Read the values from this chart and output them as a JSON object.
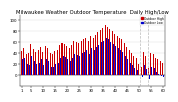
{
  "title": "Milwaukee Weather Outdoor Temperature  Daily High/Low",
  "title_fontsize": 3.8,
  "high_color": "#cc0000",
  "low_color": "#0000cc",
  "background_color": "#ffffff",
  "ylim": [
    -20,
    110
  ],
  "yticks": [
    0,
    20,
    40,
    60,
    80,
    100
  ],
  "highs": [
    44,
    49,
    38,
    40,
    56,
    47,
    41,
    46,
    50,
    42,
    52,
    48,
    39,
    38,
    44,
    46,
    55,
    58,
    56,
    52,
    48,
    55,
    61,
    60,
    58,
    62,
    65,
    68,
    62,
    70,
    68,
    72,
    78,
    82,
    85,
    90,
    88,
    84,
    80,
    75,
    70,
    68,
    65,
    58,
    50,
    45,
    40,
    35,
    30,
    20,
    15,
    42,
    35,
    12,
    40,
    38,
    30,
    28,
    25,
    22
  ],
  "lows": [
    28,
    30,
    20,
    18,
    35,
    25,
    20,
    22,
    28,
    18,
    28,
    25,
    15,
    14,
    20,
    22,
    30,
    35,
    32,
    28,
    25,
    30,
    38,
    36,
    35,
    40,
    42,
    45,
    38,
    48,
    45,
    50,
    55,
    60,
    62,
    68,
    65,
    60,
    57,
    52,
    48,
    45,
    42,
    35,
    28,
    22,
    18,
    12,
    8,
    0,
    -5,
    18,
    10,
    -8,
    15,
    12,
    5,
    2,
    -2,
    -5
  ],
  "xtick_positions": [
    0,
    4,
    9,
    14,
    19,
    24,
    29,
    34,
    39,
    44,
    49,
    54,
    59
  ],
  "xtick_labels": [
    "1",
    "5",
    "10",
    "15",
    "20",
    "25",
    "30",
    "35",
    "40",
    "45",
    "50",
    "55",
    "60"
  ],
  "dashed_vlines": [
    49.5,
    52.5
  ],
  "legend_entries": [
    "Outdoor High",
    "Outdoor Low"
  ],
  "legend_colors": [
    "#cc0000",
    "#0000cc"
  ]
}
